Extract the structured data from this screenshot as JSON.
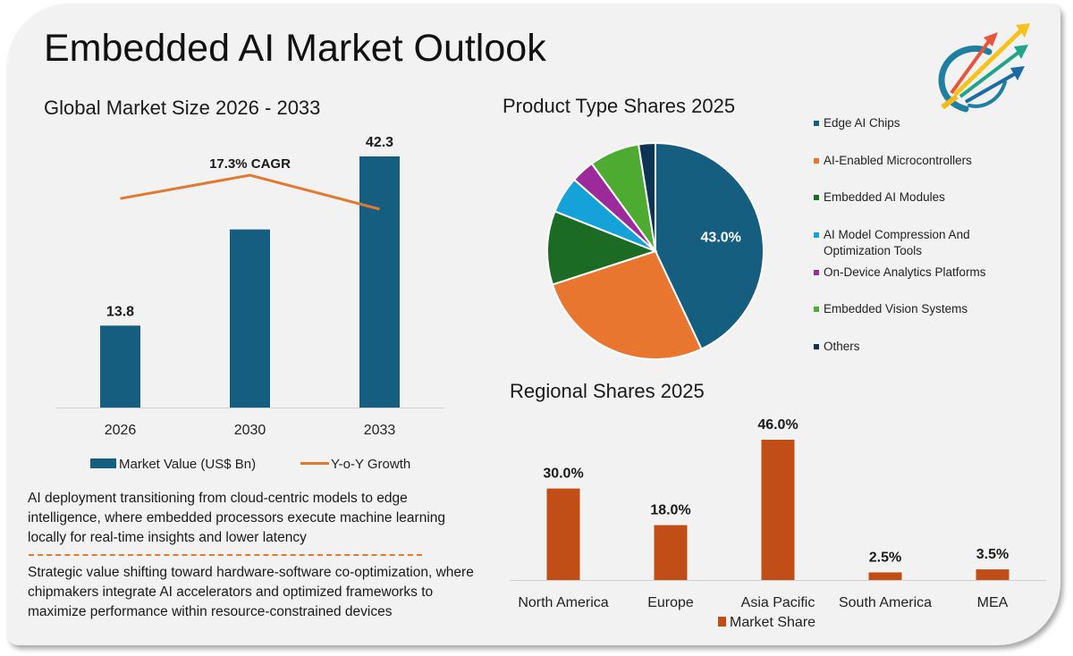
{
  "page": {
    "title": "Embedded AI Market Outlook",
    "logo_icon": "rising-arrows-logo-icon"
  },
  "colors": {
    "card_bg": "#f2f2f2",
    "market_value": "#165e80",
    "yoy_growth": "#e07a2f",
    "regional_bar": "#c14e16",
    "pie": [
      "#165e80",
      "#e8762f",
      "#1b6b25",
      "#14a2d9",
      "#9c2a9a",
      "#4eab32",
      "#0d3553"
    ]
  },
  "notes": [
    "AI deployment transitioning from cloud-centric models to edge intelligence, where embedded processors execute machine learning locally for real-time insights and lower latency",
    "Strategic value shifting toward hardware-software co-optimization, where chipmakers integrate AI accelerators and optimized frameworks to maximize performance within resource-constrained devices"
  ],
  "chart_data": [
    {
      "id": "market_size",
      "type": "bar",
      "title": "Global Market Size 2026 - 2033",
      "categories": [
        "2026",
        "2030",
        "2033"
      ],
      "series": [
        {
          "name": "Market Value (US$ Bn)",
          "type": "bar",
          "values": [
            13.8,
            30.0,
            42.3
          ],
          "labels": [
            "13.8",
            "",
            "42.3"
          ]
        },
        {
          "name": "Y-o-Y Growth",
          "type": "line",
          "values": [
            17.0,
            19.0,
            16.1
          ]
        }
      ],
      "annotation": "17.3% CAGR",
      "xlabel": "",
      "ylabel": "",
      "ylim": [
        0,
        42.3
      ],
      "grid": false,
      "legend": "bottom"
    },
    {
      "id": "product_type",
      "type": "pie",
      "title": "Product Type Shares 2025",
      "labels": [
        "Edge AI Chips",
        "AI-Enabled Microcontrollers",
        "Embedded AI Modules",
        "AI Model Compression And Optimization Tools",
        "On-Device Analytics Platforms",
        "Embedded Vision Systems",
        "Others"
      ],
      "legend_lines": [
        [
          "Edge AI Chips"
        ],
        [
          "AI-Enabled Microcontrollers"
        ],
        [
          "Embedded AI Modules"
        ],
        [
          "AI Model Compression And",
          "Optimization Tools"
        ],
        [
          "On-Device Analytics Platforms"
        ],
        [
          "Embedded Vision Systems"
        ],
        [
          "Others"
        ]
      ],
      "values": [
        43.0,
        27.0,
        11.0,
        5.5,
        3.5,
        7.5,
        2.5
      ],
      "data_labels": [
        "43.0%",
        "",
        "",
        "",
        "",
        "",
        ""
      ],
      "legend": "right"
    },
    {
      "id": "regional",
      "type": "bar",
      "title": "Regional Shares 2025",
      "categories": [
        "North America",
        "Europe",
        "Asia Pacific",
        "South America",
        "MEA"
      ],
      "series": [
        {
          "name": "Market Share",
          "values": [
            30.0,
            18.0,
            46.0,
            2.5,
            3.5
          ],
          "labels": [
            "30.0%",
            "18.0%",
            "46.0%",
            "2.5%",
            "3.5%"
          ]
        }
      ],
      "ylim": [
        0,
        46
      ],
      "grid": false,
      "legend": "bottom"
    }
  ]
}
